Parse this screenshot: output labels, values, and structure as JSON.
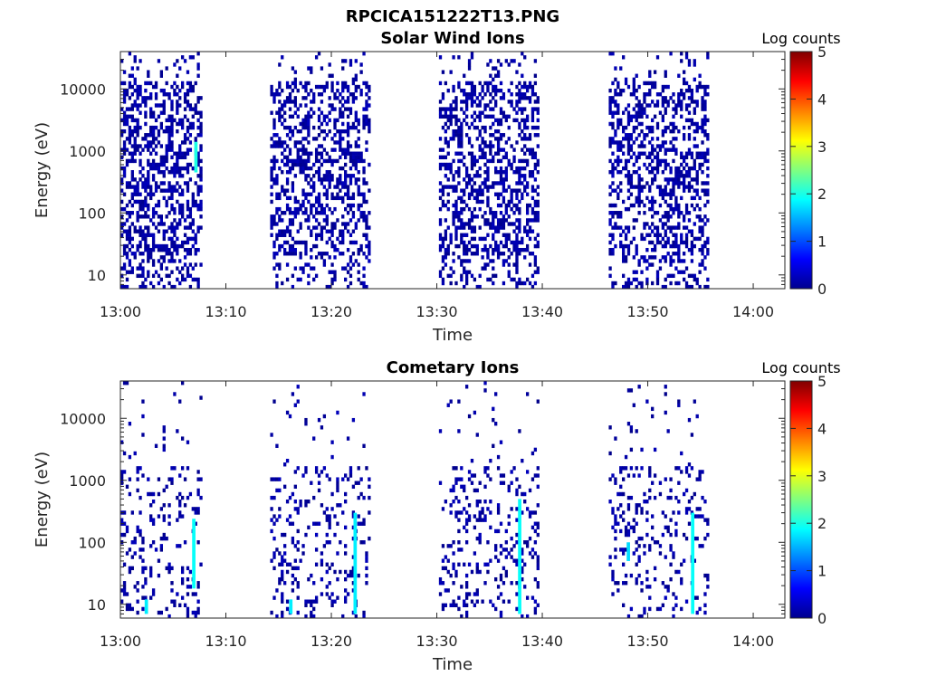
{
  "figure": {
    "title": "RPCICA151222T13.PNG"
  },
  "colorbar": {
    "label": "Log counts",
    "ticks": [
      "0",
      "1",
      "2",
      "3",
      "4",
      "5"
    ],
    "min": 0,
    "max": 5
  },
  "chart_data": [
    {
      "type": "heatmap",
      "title": "Solar Wind Ions",
      "xlabel": "Time",
      "ylabel": "Energy (eV)",
      "x_ticks": [
        "13:00",
        "13:10",
        "13:20",
        "13:30",
        "13:40",
        "13:50",
        "14:00"
      ],
      "y_ticks": [
        "10",
        "100",
        "1000",
        "10000"
      ],
      "yscale": "log",
      "xlim_minutes_after_13": [
        0,
        63
      ],
      "ylim_eV": [
        6,
        40000
      ],
      "grid": false,
      "z_label": "Log counts",
      "z_range": [
        0,
        5
      ],
      "bursts_minutes_after_13": [
        [
          0.0,
          7.6
        ],
        [
          14.2,
          23.6
        ],
        [
          30.2,
          39.6
        ],
        [
          46.3,
          55.6
        ]
      ],
      "bright_features": [
        {
          "minute": 7.0,
          "energy_range_eV": [
            450,
            1400
          ],
          "log_counts": 2.0
        }
      ],
      "seed": 7,
      "density": 0.42
    },
    {
      "type": "heatmap",
      "title": "Cometary Ions",
      "xlabel": "Time",
      "ylabel": "Energy (eV)",
      "x_ticks": [
        "13:00",
        "13:10",
        "13:20",
        "13:30",
        "13:40",
        "13:50",
        "14:00"
      ],
      "y_ticks": [
        "10",
        "100",
        "1000",
        "10000"
      ],
      "yscale": "log",
      "xlim_minutes_after_13": [
        0,
        63
      ],
      "ylim_eV": [
        6,
        40000
      ],
      "grid": false,
      "z_label": "Log counts",
      "z_range": [
        0,
        5
      ],
      "bursts_minutes_after_13": [
        [
          0.0,
          7.6
        ],
        [
          14.2,
          23.6
        ],
        [
          30.2,
          39.6
        ],
        [
          46.3,
          55.6
        ]
      ],
      "bright_features": [
        {
          "minute": 2.3,
          "energy_range_eV": [
            7,
            12
          ],
          "log_counts": 1.8
        },
        {
          "minute": 6.8,
          "energy_range_eV": [
            18,
            240
          ],
          "log_counts": 1.9
        },
        {
          "minute": 16.0,
          "energy_range_eV": [
            7,
            12
          ],
          "log_counts": 1.8
        },
        {
          "minute": 22.1,
          "energy_range_eV": [
            7,
            300
          ],
          "log_counts": 1.8
        },
        {
          "minute": 37.7,
          "energy_range_eV": [
            7,
            500
          ],
          "log_counts": 1.9
        },
        {
          "minute": 48.0,
          "energy_range_eV": [
            50,
            100
          ],
          "log_counts": 1.7
        },
        {
          "minute": 54.1,
          "energy_range_eV": [
            7,
            300
          ],
          "log_counts": 1.9
        }
      ],
      "seed": 13,
      "density": 0.16
    }
  ]
}
